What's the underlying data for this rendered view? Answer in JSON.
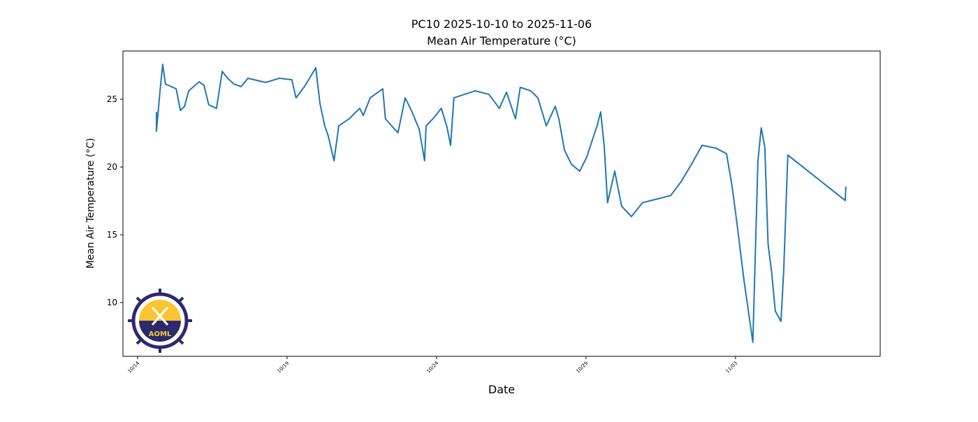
{
  "chart_data": {
    "type": "line",
    "title": "PC10 2025-10-10 to 2025-11-06",
    "subtitle": "Mean Air Temperature (°C)",
    "x_label": "Date",
    "y_label": "Mean Air Temperature (°C)",
    "xlim": [
      13.51,
      38.84
    ],
    "ylim": [
      6.03,
      28.56
    ],
    "xticks": [
      {
        "value": 14,
        "label": "10/14"
      },
      {
        "value": 19,
        "label": "10/19"
      },
      {
        "value": 24,
        "label": "10/24"
      },
      {
        "value": 29,
        "label": "10/29"
      },
      {
        "value": 34,
        "label": "11/03"
      }
    ],
    "yticks": [
      10,
      15,
      20,
      25
    ],
    "grid": false,
    "series": [
      {
        "color": "#1f77b4",
        "x": [
          14.63,
          14.63,
          14.75,
          14.84,
          14.93,
          15.29,
          15.43,
          15.57,
          15.71,
          16.06,
          16.22,
          16.38,
          16.64,
          16.83,
          17.01,
          17.22,
          17.46,
          17.69,
          18.28,
          18.74,
          19.16,
          19.3,
          19.58,
          19.96,
          20.1,
          20.26,
          20.38,
          20.57,
          20.73,
          21.08,
          21.43,
          21.55,
          21.78,
          22.2,
          22.29,
          22.6,
          22.71,
          22.95,
          23.18,
          23.42,
          23.6,
          23.65,
          23.88,
          24.16,
          24.35,
          24.47,
          24.58,
          25.29,
          25.75,
          26.1,
          26.34,
          26.64,
          26.8,
          27.15,
          27.39,
          27.67,
          27.97,
          28.09,
          28.28,
          28.51,
          28.79,
          29.02,
          29.37,
          29.49,
          29.61,
          29.72,
          29.96,
          30.19,
          30.52,
          30.89,
          31.36,
          31.83,
          32.18,
          32.53,
          32.88,
          33.35,
          33.7,
          33.88,
          34.05,
          34.28,
          34.58,
          34.75,
          34.86,
          34.98,
          35.09,
          35.21,
          35.33,
          35.52,
          35.61,
          35.75,
          37.67,
          37.69
        ],
        "values": [
          24.07,
          22.63,
          25.62,
          27.58,
          26.13,
          25.77,
          24.18,
          24.48,
          25.62,
          26.29,
          26.03,
          24.59,
          24.33,
          27.06,
          26.55,
          26.13,
          25.93,
          26.55,
          26.24,
          26.55,
          26.44,
          25.1,
          25.93,
          27.32,
          24.69,
          23.04,
          22.27,
          20.46,
          23.04,
          23.56,
          24.33,
          23.81,
          25.1,
          25.77,
          23.56,
          22.78,
          22.53,
          25.1,
          24.07,
          22.78,
          20.46,
          23.04,
          23.56,
          24.33,
          22.94,
          21.6,
          25.1,
          25.62,
          25.36,
          24.33,
          25.52,
          23.56,
          25.88,
          25.62,
          25.1,
          23.04,
          24.48,
          23.56,
          21.24,
          20.21,
          19.69,
          20.72,
          23.04,
          24.07,
          21.49,
          17.37,
          19.69,
          17.11,
          16.34,
          17.37,
          17.63,
          17.89,
          18.92,
          20.21,
          21.6,
          21.39,
          20.98,
          18.66,
          15.82,
          11.7,
          7.06,
          20.46,
          22.89,
          21.49,
          14.28,
          12.22,
          9.38,
          8.61,
          12.22,
          20.88,
          17.53,
          18.56
        ]
      }
    ]
  },
  "logo": {
    "text": "AOML"
  }
}
